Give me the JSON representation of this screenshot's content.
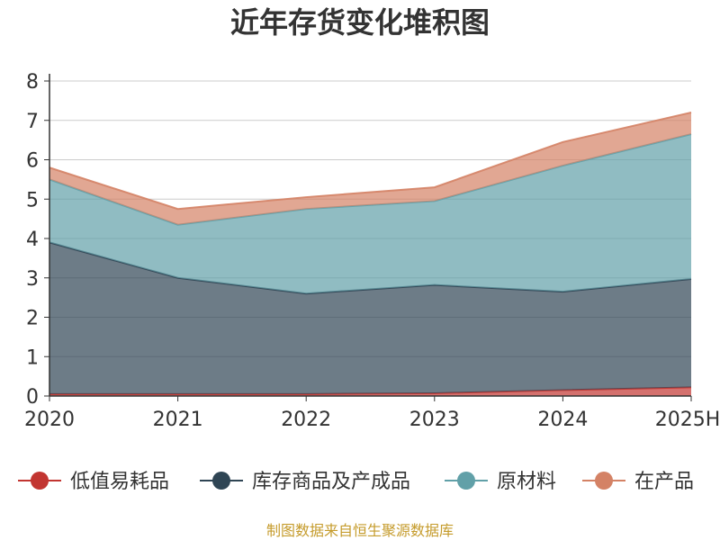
{
  "chart_data": {
    "type": "area",
    "title": "近年存货变化堆积图",
    "categories": [
      "2020",
      "2021",
      "2022",
      "2023",
      "2024",
      "2025H"
    ],
    "ylim": [
      0,
      8
    ],
    "yticks": [
      "0",
      "1",
      "2",
      "3",
      "4",
      "5",
      "6",
      "7",
      "8"
    ],
    "stacked": true,
    "grid": true,
    "legend_position": "bottom",
    "series": [
      {
        "name": "低值易耗品",
        "values": [
          0.05,
          0.05,
          0.05,
          0.07,
          0.15,
          0.22
        ],
        "color": "#c23531"
      },
      {
        "name": "库存商品及产成品",
        "values": [
          3.85,
          2.95,
          2.55,
          2.75,
          2.5,
          2.75
        ],
        "color": "#2f4554"
      },
      {
        "name": "原材料",
        "values": [
          1.6,
          1.35,
          2.15,
          2.13,
          3.2,
          3.68
        ],
        "color": "#61a0a8"
      },
      {
        "name": "在产品",
        "values": [
          0.3,
          0.4,
          0.3,
          0.35,
          0.6,
          0.55
        ],
        "color": "#d48265"
      }
    ]
  },
  "source_text": "制图数据来自恒生聚源数据库"
}
